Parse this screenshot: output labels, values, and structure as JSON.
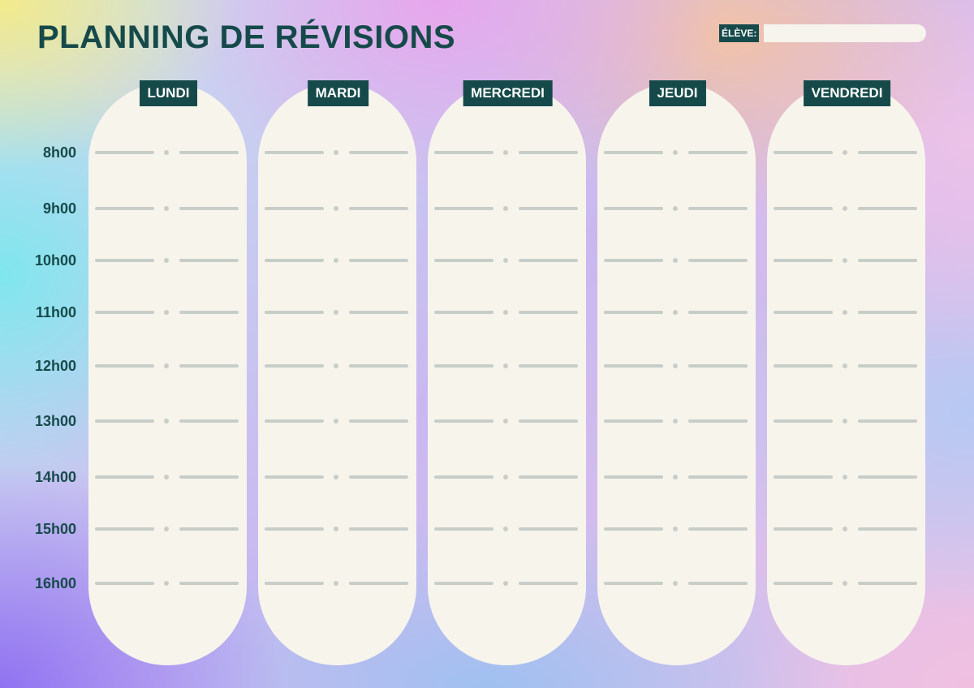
{
  "title": "PLANNING DE RÉVISIONS",
  "student": {
    "label": "ÉLÈVE:",
    "value": ""
  },
  "hours": [
    "8h00",
    "9h00",
    "10h00",
    "11h00",
    "12h00",
    "13h00",
    "14h00",
    "15h00",
    "16h00"
  ],
  "days": [
    "LUNDI",
    "MARDI",
    "MERCREDI",
    "JEUDI",
    "VENDREDI"
  ],
  "colors": {
    "primary": "#164a4a",
    "card": "#f7f4ec",
    "line": "#c7cec9"
  }
}
